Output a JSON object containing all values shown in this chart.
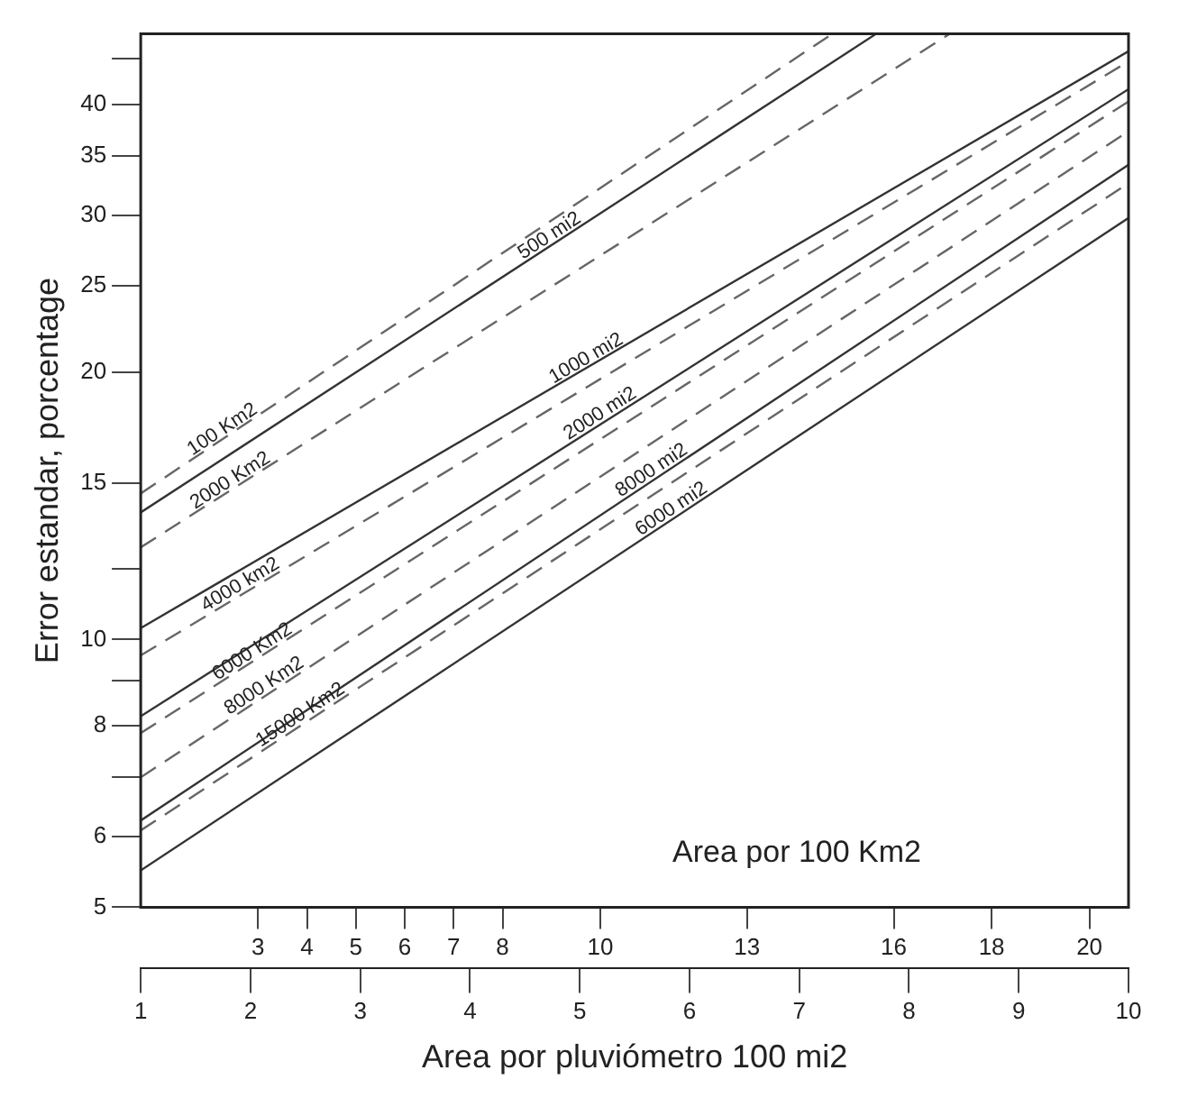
{
  "chart_data": {
    "type": "line",
    "xlabel": "Area por pluviómetro 100 mi2",
    "ylabel": "Error estandar, porcentage",
    "x2label": "Area por 100 Km2",
    "x": [
      1,
      10
    ],
    "series": [
      {
        "x": [
          1,
          7.3
        ],
        "values": [
          14.6,
          48
        ],
        "color": "#666666",
        "line_style": "dashed"
      },
      {
        "x": [
          1,
          7.7
        ],
        "values": [
          13.9,
          48
        ],
        "color": "#333333",
        "line_style": "solid"
      },
      {
        "x": [
          1,
          8.37
        ],
        "values": [
          12.7,
          48
        ],
        "color": "#666666",
        "line_style": "dashed"
      },
      {
        "values": [
          10.3,
          45.9
        ],
        "color": "#333333",
        "line_style": "solid"
      },
      {
        "values": [
          9.6,
          44.7
        ],
        "color": "#666666",
        "line_style": "dashed"
      },
      {
        "values": [
          8.2,
          41.6
        ],
        "color": "#333333",
        "line_style": "solid"
      },
      {
        "values": [
          7.85,
          40.3
        ],
        "color": "#666666",
        "line_style": "dashed"
      },
      {
        "values": [
          7.0,
          37.3
        ],
        "color": "#666666",
        "line_style": "dashed"
      },
      {
        "values": [
          6.26,
          34.2
        ],
        "color": "#333333",
        "line_style": "solid"
      },
      {
        "values": [
          6.1,
          32.6
        ],
        "color": "#666666",
        "line_style": "dashed"
      },
      {
        "values": [
          5.5,
          29.8
        ],
        "color": "#333333",
        "line_style": "solid"
      }
    ],
    "log": "y",
    "xlim": [
      1,
      10
    ],
    "xticks": [
      1,
      2,
      3,
      4,
      5,
      6,
      7,
      8,
      9,
      10
    ],
    "x2lim": [
      0.6,
      20.8
    ],
    "x2ticks": [
      3,
      4,
      5,
      6,
      7,
      8,
      10,
      13,
      16,
      18,
      20
    ],
    "ylim": [
      5,
      48
    ],
    "yticks": [
      5,
      6,
      {
        "value": 7,
        "label": null
      },
      8,
      {
        "value": 9,
        "label": null
      },
      10,
      {
        "value": 12,
        "label": null
      },
      15,
      20,
      25,
      30,
      35,
      40,
      {
        "value": 45,
        "label": null
      }
    ],
    "marker": "none",
    "grid": false,
    "legend": false,
    "annotations": [
      {
        "text": "100 Km2",
        "x": 1.79,
        "y": 16.9
      },
      {
        "text": "500 mi2",
        "x": 4.77,
        "y": 27.9
      },
      {
        "text": "1000 mi2",
        "x": 5.1,
        "y": 20.3
      },
      {
        "text": "2000 mi2",
        "x": 5.23,
        "y": 17.6
      },
      {
        "text": "8000 mi2",
        "x": 5.7,
        "y": 15.2
      },
      {
        "text": "6000 mi2",
        "x": 5.88,
        "y": 13.75
      },
      {
        "text": "2000 Km2",
        "x": 1.86,
        "y": 14.8
      },
      {
        "text": "4000 km2",
        "x": 1.95,
        "y": 11.3
      },
      {
        "text": "6000 Km2",
        "x": 2.06,
        "y": 9.5
      },
      {
        "text": "8000 Km2",
        "x": 2.17,
        "y": 8.7
      },
      {
        "text": "15000 Km2",
        "x": 2.5,
        "y": 8.07
      }
    ]
  }
}
